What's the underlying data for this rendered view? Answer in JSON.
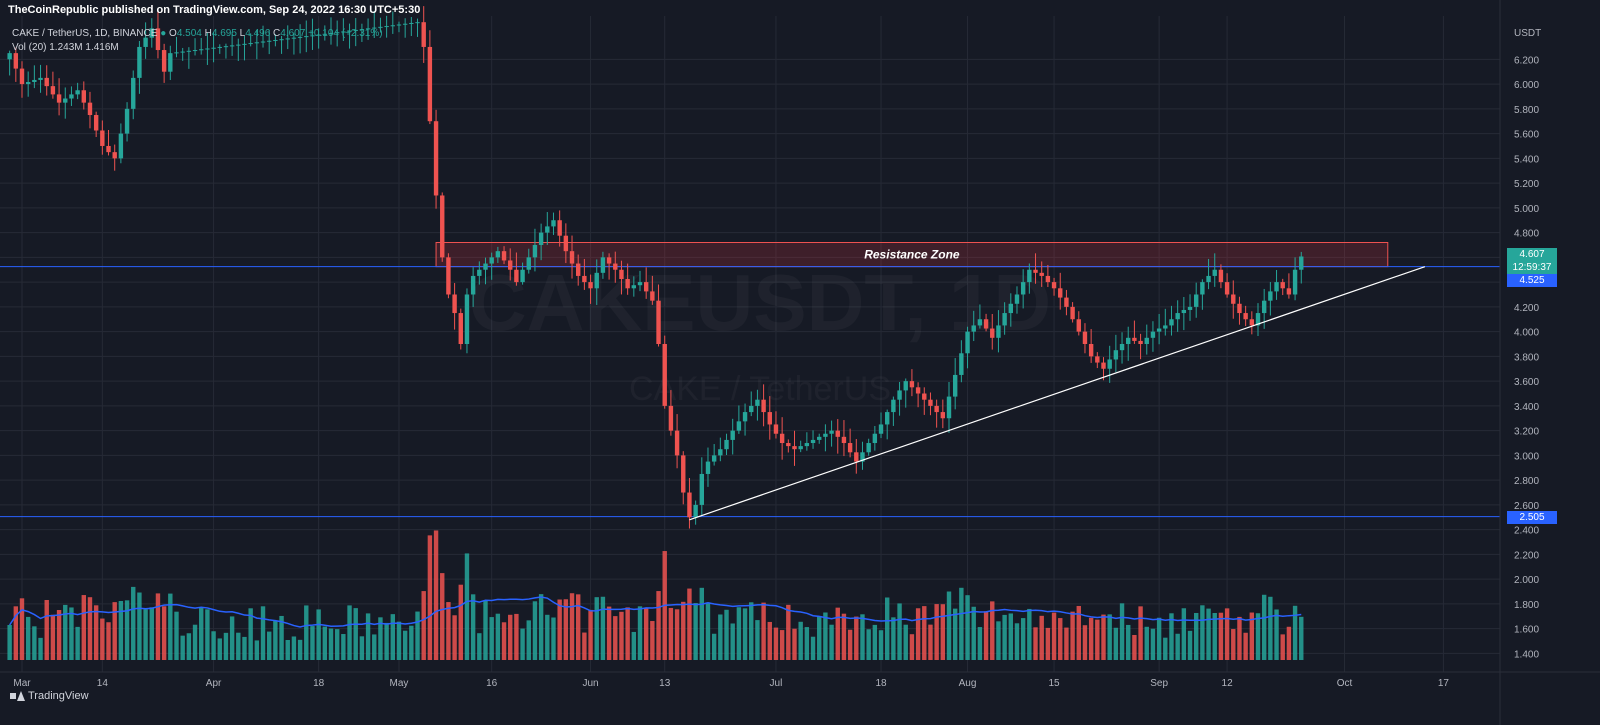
{
  "header": {
    "publisher": "TheCoinRepublic published on TradingView.com, Sep 24, 2022 16:30 UTC+5:30"
  },
  "legend": {
    "symbol": "CAKE / TetherUS, 1D, BINANCE",
    "o_label": "O",
    "o_value": "4.504",
    "h_label": "H",
    "h_value": "4.695",
    "l_label": "L",
    "l_value": "4.496",
    "c_label": "C",
    "c_value": "4.607",
    "change": "+0.104 (+2.31%)",
    "vol_label": "Vol (20)",
    "vol_value": "1.243M",
    "vol_ma": "1.416M"
  },
  "watermark": {
    "line1": "CAKEUSDT, 1D",
    "line2": "CAKE / TetherUS"
  },
  "brand": {
    "name": "TradingView"
  },
  "badges": {
    "last_price": "4.607",
    "countdown": "12:59:37",
    "line_upper": "4.525",
    "line_lower": "2.505"
  },
  "colors": {
    "background": "#161a25",
    "up": "#26a69a",
    "down": "#ef5350",
    "horizontal_line": "#2962ff",
    "zone_fill": "rgba(242,54,69,0.18)",
    "trendline": "#ffffff",
    "volume_ma": "#2962ff"
  },
  "chart_data": {
    "type": "candlestick",
    "title": "CAKE / TetherUS, 1D, BINANCE",
    "y_axis_unit": "USDT",
    "ylim": [
      1.25,
      6.55
    ],
    "y_ticks": [
      "6.200",
      "6.000",
      "5.800",
      "5.600",
      "5.400",
      "5.200",
      "5.000",
      "4.800",
      "4.600",
      "4.400",
      "4.200",
      "4.000",
      "3.800",
      "3.600",
      "3.400",
      "3.200",
      "3.000",
      "2.800",
      "2.600",
      "2.400",
      "2.200",
      "2.000",
      "1.800",
      "1.600",
      "1.400"
    ],
    "x_ticks": [
      "Mar",
      "14",
      "Apr",
      "18",
      "May",
      "16",
      "Jun",
      "13",
      "Jul",
      "18",
      "Aug",
      "15",
      "Sep",
      "12",
      "Oct",
      "17"
    ],
    "x_ticks_text": [
      "Mar",
      "14",
      "Apr",
      "18",
      "May",
      "16",
      "Jun",
      "13",
      "Jul",
      "18",
      "Aug",
      "15",
      "Sep",
      "12",
      "Oct",
      "17"
    ],
    "x_ticks_days": [
      0,
      13,
      31,
      48,
      61,
      76,
      92,
      104,
      122,
      139,
      153,
      167,
      184,
      195,
      214,
      230
    ],
    "date_start": "2022-03-01",
    "end_day": 207,
    "volume_scale_max": 25,
    "resistance_zone": {
      "label": "Resistance Zone",
      "low": 4.525,
      "high": 4.72,
      "start_day": 67,
      "end_day": 221
    },
    "horizontal_lines": [
      4.525,
      2.505
    ],
    "trendline": {
      "start_day": 108,
      "start_price": 2.48,
      "end_day": 227,
      "end_price": 4.525
    },
    "key_points": [
      [
        -2,
        6.25
      ],
      [
        0,
        6.0
      ],
      [
        3,
        6.05
      ],
      [
        6,
        5.85
      ],
      [
        9,
        5.95
      ],
      [
        11,
        5.75
      ],
      [
        13,
        5.5
      ],
      [
        15,
        5.4
      ],
      [
        17,
        5.8
      ],
      [
        19,
        6.3
      ],
      [
        21,
        6.45
      ],
      [
        23,
        6.1
      ],
      [
        24,
        6.25
      ],
      [
        64,
        6.5
      ],
      [
        65,
        6.3
      ],
      [
        66,
        5.7
      ],
      [
        67,
        5.1
      ],
      [
        68,
        4.6
      ],
      [
        69,
        4.3
      ],
      [
        70,
        4.15
      ],
      [
        71,
        3.9
      ],
      [
        72,
        4.3
      ],
      [
        73,
        4.45
      ],
      [
        75,
        4.55
      ],
      [
        77,
        4.65
      ],
      [
        79,
        4.5
      ],
      [
        80,
        4.4
      ],
      [
        82,
        4.6
      ],
      [
        84,
        4.8
      ],
      [
        86,
        4.9
      ],
      [
        88,
        4.65
      ],
      [
        90,
        4.45
      ],
      [
        92,
        4.35
      ],
      [
        94,
        4.6
      ],
      [
        96,
        4.5
      ],
      [
        98,
        4.35
      ],
      [
        100,
        4.4
      ],
      [
        102,
        4.25
      ],
      [
        103,
        3.9
      ],
      [
        104,
        3.4
      ],
      [
        105,
        3.2
      ],
      [
        106,
        3.0
      ],
      [
        107,
        2.7
      ],
      [
        108,
        2.5
      ],
      [
        109,
        2.6
      ],
      [
        110,
        2.85
      ],
      [
        111,
        2.95
      ],
      [
        113,
        3.05
      ],
      [
        115,
        3.2
      ],
      [
        117,
        3.35
      ],
      [
        119,
        3.45
      ],
      [
        121,
        3.25
      ],
      [
        123,
        3.1
      ],
      [
        125,
        3.05
      ],
      [
        127,
        3.1
      ],
      [
        129,
        3.15
      ],
      [
        131,
        3.2
      ],
      [
        133,
        3.1
      ],
      [
        135,
        2.95
      ],
      [
        137,
        3.1
      ],
      [
        139,
        3.25
      ],
      [
        141,
        3.45
      ],
      [
        143,
        3.6
      ],
      [
        145,
        3.5
      ],
      [
        147,
        3.4
      ],
      [
        149,
        3.3
      ],
      [
        151,
        3.65
      ],
      [
        153,
        4.0
      ],
      [
        155,
        4.1
      ],
      [
        157,
        3.95
      ],
      [
        159,
        4.15
      ],
      [
        161,
        4.3
      ],
      [
        163,
        4.5
      ],
      [
        165,
        4.45
      ],
      [
        167,
        4.35
      ],
      [
        169,
        4.2
      ],
      [
        171,
        4.0
      ],
      [
        173,
        3.8
      ],
      [
        175,
        3.7
      ],
      [
        177,
        3.85
      ],
      [
        179,
        3.95
      ],
      [
        181,
        3.9
      ],
      [
        183,
        4.0
      ],
      [
        185,
        4.05
      ],
      [
        187,
        4.15
      ],
      [
        189,
        4.2
      ],
      [
        191,
        4.4
      ],
      [
        193,
        4.5
      ],
      [
        195,
        4.3
      ],
      [
        197,
        4.15
      ],
      [
        199,
        4.05
      ],
      [
        201,
        4.25
      ],
      [
        203,
        4.4
      ],
      [
        205,
        4.3
      ],
      [
        206,
        4.5
      ],
      [
        207,
        4.607
      ]
    ],
    "legend": {
      "entries": [
        "O 4.504",
        "H 4.695",
        "L 4.496",
        "C 4.607",
        "+0.104 (+2.31%)",
        "Vol (20) 1.243M 1.416M"
      ]
    }
  }
}
